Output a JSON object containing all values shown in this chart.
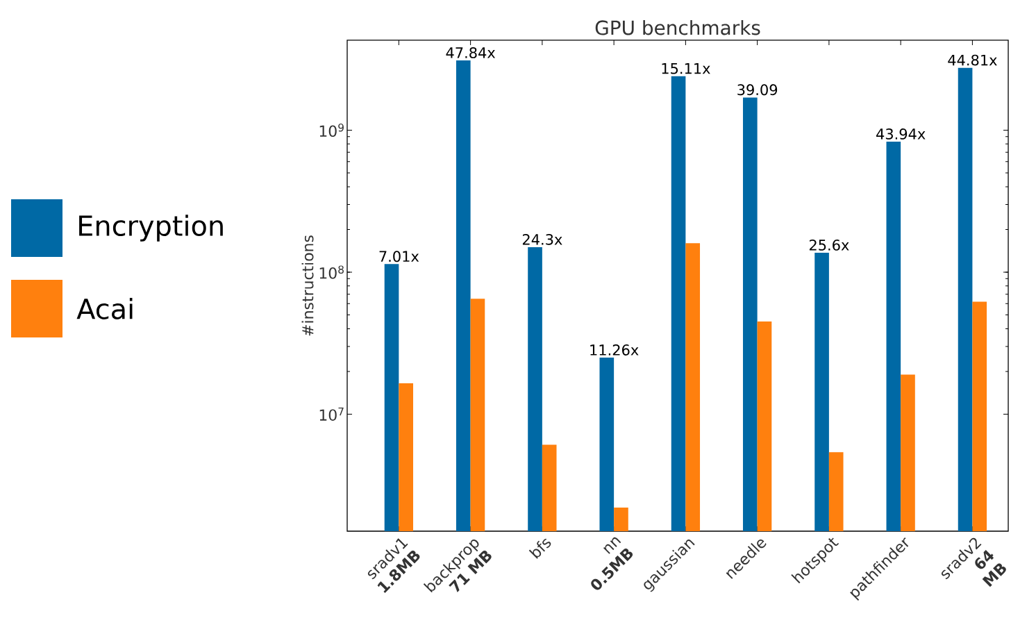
{
  "chart_data": {
    "type": "bar",
    "title": "GPU benchmarks",
    "ylabel": "#instructions",
    "categories": [
      "sradv1 **1.8MB**",
      "backprop **71 MB**",
      "bfs",
      "nn **0.5MB**",
      "gaussian",
      "needle",
      "hotspot",
      "pathfinder",
      "sradv2 **64 MB**"
    ],
    "series": [
      {
        "name": "Encryption",
        "color": "#0069a5",
        "values": [
          114000000,
          3100000000,
          150000000,
          25000000,
          2400000000,
          1700000000,
          137000000,
          830000000,
          2750000000
        ]
      },
      {
        "name": "Acai",
        "color": "#ff800e",
        "values": [
          16500000,
          65000000,
          6100000,
          2200000,
          160000000,
          45000000,
          5400000,
          19000000,
          62000000
        ]
      }
    ],
    "log": "y",
    "ylim": [
      1500000,
      4300000000
    ],
    "yticks": [
      {
        "value": 10000000,
        "label": "10$^{7}$"
      },
      {
        "value": 100000000,
        "label": "10$^{8}$"
      },
      {
        "value": 1000000000,
        "label": "10$^{9}$"
      }
    ],
    "legend": "left",
    "annotations": [
      {
        "text": "7.01x",
        "x": "sradv1 **1.8MB**",
        "y": 114000000
      },
      {
        "text": "47.84x",
        "x": "backprop **71 MB**",
        "y": 3100000000
      },
      {
        "text": "24.3x",
        "x": "bfs",
        "y": 150000000
      },
      {
        "text": "11.26x",
        "x": "nn **0.5MB**",
        "y": 25000000
      },
      {
        "text": "15.11x",
        "x": "gaussian",
        "y": 2400000000
      },
      {
        "text": "39.09",
        "x": "needle",
        "y": 1700000000
      },
      {
        "text": "25.6x",
        "x": "hotspot",
        "y": 137000000
      },
      {
        "text": "43.94x",
        "x": "pathfinder",
        "y": 830000000
      },
      {
        "text": "44.81x",
        "x": "sradv2 **64 MB**",
        "y": 2750000000
      }
    ]
  }
}
